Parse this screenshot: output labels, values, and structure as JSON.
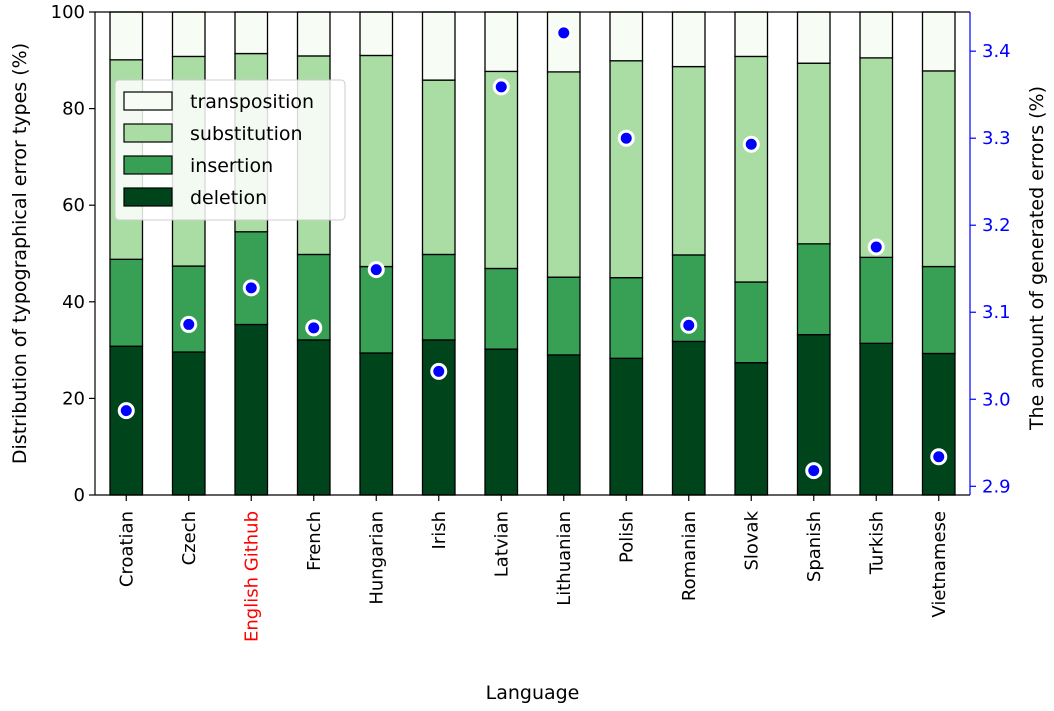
{
  "chart_data": {
    "type": "bar",
    "stacked": true,
    "title": "",
    "xlabel": "Language",
    "ylabel": "Distribution of typographical error types (%)",
    "y2label": "The amount of generated errors (%)",
    "ylim": [
      0,
      100
    ],
    "y2lim": [
      2.89,
      3.445
    ],
    "yticks": [
      "0",
      "20",
      "40",
      "60",
      "80",
      "100"
    ],
    "y2ticks": [
      "2.9",
      "3.0",
      "3.1",
      "3.2",
      "3.3",
      "3.4"
    ],
    "legend_position": "upper-left",
    "grid": false,
    "categories": [
      "Croatian",
      "Czech",
      "English Github",
      "French",
      "Hungarian",
      "Irish",
      "Latvian",
      "Lithuanian",
      "Polish",
      "Romanian",
      "Slovak",
      "Spanish",
      "Turkish",
      "Vietnamese"
    ],
    "highlighted_category": "English Github",
    "highlight_color": "#ff0000",
    "series": [
      {
        "name": "deletion",
        "color": "#00441b",
        "values": [
          30.8,
          29.6,
          35.3,
          32.1,
          29.4,
          32.1,
          30.2,
          29.0,
          28.3,
          31.8,
          27.4,
          33.2,
          31.4,
          29.3
        ]
      },
      {
        "name": "insertion",
        "color": "#37a055",
        "values": [
          18.0,
          17.8,
          19.2,
          17.7,
          17.9,
          17.7,
          16.7,
          16.1,
          16.7,
          17.9,
          16.7,
          18.8,
          17.8,
          18.0
        ]
      },
      {
        "name": "substitution",
        "color": "#aadda4",
        "values": [
          41.3,
          43.4,
          36.9,
          41.1,
          43.7,
          36.1,
          40.8,
          42.5,
          44.9,
          39.0,
          46.7,
          37.4,
          41.3,
          40.5
        ]
      },
      {
        "name": "transposition",
        "color": "#f7fcf5",
        "values": [
          9.9,
          9.2,
          8.6,
          9.1,
          9.0,
          14.1,
          12.3,
          12.4,
          10.1,
          11.3,
          9.2,
          10.6,
          9.5,
          12.2
        ]
      }
    ],
    "scatter_series": {
      "axis": "right",
      "color": "#0000ff",
      "values": [
        2.987,
        3.086,
        3.128,
        3.082,
        3.149,
        3.032,
        3.359,
        3.421,
        3.3,
        3.085,
        3.293,
        2.918,
        3.175,
        2.934
      ]
    }
  }
}
